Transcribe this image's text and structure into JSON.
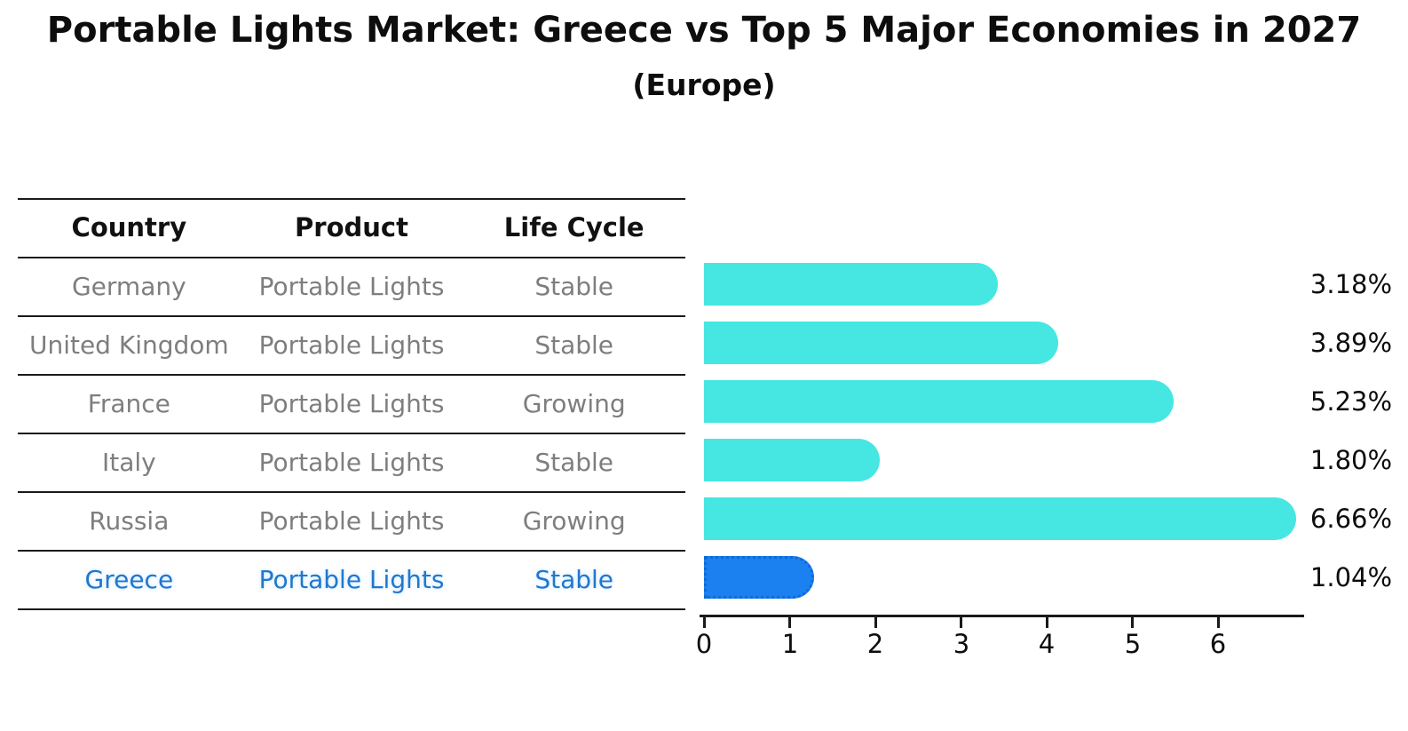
{
  "chart_data": {
    "type": "bar",
    "orientation": "horizontal",
    "title": "Portable Lights Market: Greece vs Top 5 Major Economies in 2027",
    "subtitle": "(Europe)",
    "categories": [
      "Germany",
      "United Kingdom",
      "France",
      "Italy",
      "Russia",
      "Greece"
    ],
    "values": [
      3.18,
      3.89,
      5.23,
      1.8,
      6.66,
      1.04
    ],
    "value_labels": [
      "3.18%",
      "3.89%",
      "5.23%",
      "1.80%",
      "6.66%",
      "1.04%"
    ],
    "xticks": [
      "0",
      "1",
      "2",
      "3",
      "4",
      "5",
      "6"
    ],
    "xlim": [
      0,
      7
    ],
    "grid": false,
    "legend": null,
    "highlight_index": 5,
    "colors": {
      "bar": "#46E7E2",
      "highlight_bar": "#1B80F0",
      "highlight_border": "#0D6BD8",
      "highlight_text": "#2277CC",
      "text": "#0D0D0D",
      "muted_text": "#7E7E7E",
      "line": "#1A1A1A"
    }
  },
  "table": {
    "headers": [
      "Country",
      "Product",
      "Life Cycle"
    ],
    "rows": [
      {
        "country": "Germany",
        "product": "Portable Lights",
        "life_cycle": "Stable",
        "highlighted": false
      },
      {
        "country": "United Kingdom",
        "product": "Portable Lights",
        "life_cycle": "Stable",
        "highlighted": false
      },
      {
        "country": "France",
        "product": "Portable Lights",
        "life_cycle": "Growing",
        "highlighted": false
      },
      {
        "country": "Italy",
        "product": "Portable Lights",
        "life_cycle": "Stable",
        "highlighted": false
      },
      {
        "country": "Russia",
        "product": "Portable Lights",
        "life_cycle": "Growing",
        "highlighted": false
      },
      {
        "country": "Greece",
        "product": "Portable Lights",
        "life_cycle": "Stable",
        "highlighted": true
      }
    ]
  }
}
